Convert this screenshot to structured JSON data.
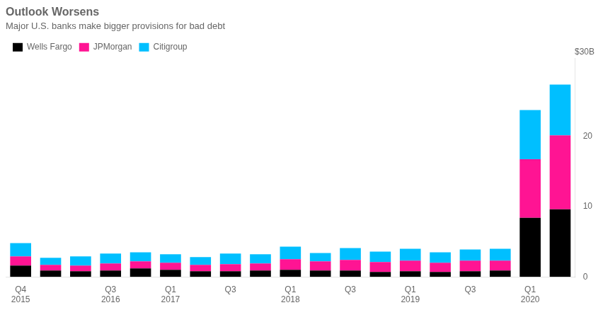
{
  "chart_data": {
    "type": "bar",
    "title": "Outlook Worsens",
    "subtitle": "Major U.S. banks make bigger provisions for bad debt",
    "categories": [
      "Q4\n2015",
      null,
      null,
      "Q3\n2016",
      null,
      "Q1\n2017",
      null,
      "Q3",
      null,
      "Q1\n2018",
      null,
      "Q3",
      null,
      "Q1\n2019",
      null,
      "Q3",
      null,
      "Q1\n2020",
      null
    ],
    "series": [
      {
        "name": "Wells Fargo",
        "color": "#000000",
        "values": [
          1.6,
          0.9,
          0.8,
          0.9,
          1.2,
          1.0,
          0.8,
          0.8,
          0.9,
          1.0,
          0.9,
          0.9,
          0.7,
          0.8,
          0.7,
          0.8,
          0.9,
          8.4,
          9.6
        ]
      },
      {
        "name": "JPMorgan",
        "color": "#FF1493",
        "values": [
          1.3,
          0.8,
          0.8,
          1.0,
          1.0,
          1.0,
          0.9,
          1.0,
          1.0,
          1.5,
          1.3,
          1.5,
          1.4,
          1.5,
          1.3,
          1.5,
          1.4,
          8.3,
          10.5
        ]
      },
      {
        "name": "Citigroup",
        "color": "#00BFFF",
        "values": [
          1.9,
          1.0,
          1.3,
          1.4,
          1.3,
          1.2,
          1.1,
          1.5,
          1.3,
          1.8,
          1.2,
          1.7,
          1.5,
          1.7,
          1.5,
          1.6,
          1.7,
          7.0,
          7.2
        ]
      }
    ],
    "stacked": true,
    "ylim": [
      0,
      31
    ],
    "yticks": [
      0,
      10,
      20
    ],
    "grid": false,
    "legend": "top-left",
    "annotation": "$30B"
  }
}
